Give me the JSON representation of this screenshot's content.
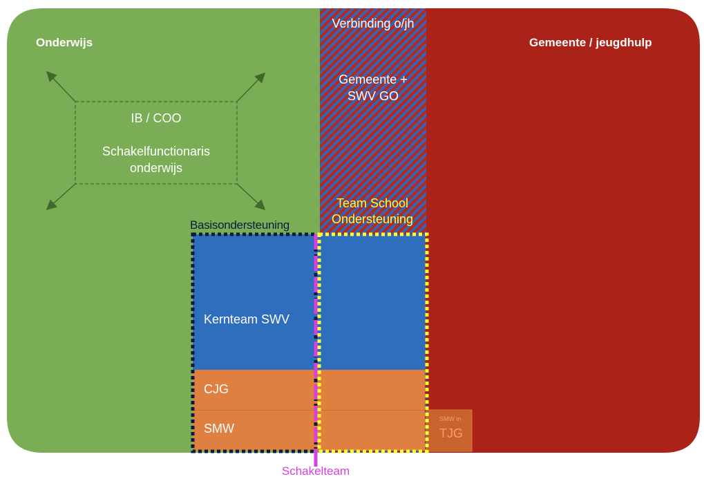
{
  "domains": {
    "education": "Onderwijs",
    "municipality": "Gemeente / jeugdhulp",
    "connection_title": "Verbinding o/jh",
    "connection_body": "Gemeente + SWV GO"
  },
  "coordinator_box": {
    "line1": "IB / COO",
    "line2": "Schakelfunctionaris onderwijs"
  },
  "frames": {
    "basic_support": "Basisondersteuning",
    "team_school_support": "Team School Ondersteuning",
    "link_team": "Schakelteam"
  },
  "blocks": {
    "core_team": "Kernteam SWV",
    "cjg": "CJG",
    "smw": "SMW",
    "smw_tjg_small": "SMW in",
    "smw_tjg_large": "TJG"
  },
  "colors": {
    "education_green": "#7aad55",
    "municipality_red": "#ab2219",
    "block_blue": "#2f6ebd",
    "block_orange": "#e08040",
    "frame_navy": "#0d1c3d",
    "frame_yellow": "#ffff33",
    "link_magenta": "#d83ee0",
    "hatch_red": "#b22a1c",
    "hatch_blue": "#3a62b4"
  },
  "icons": {
    "arrows": "diagonal-arrows-outward"
  }
}
